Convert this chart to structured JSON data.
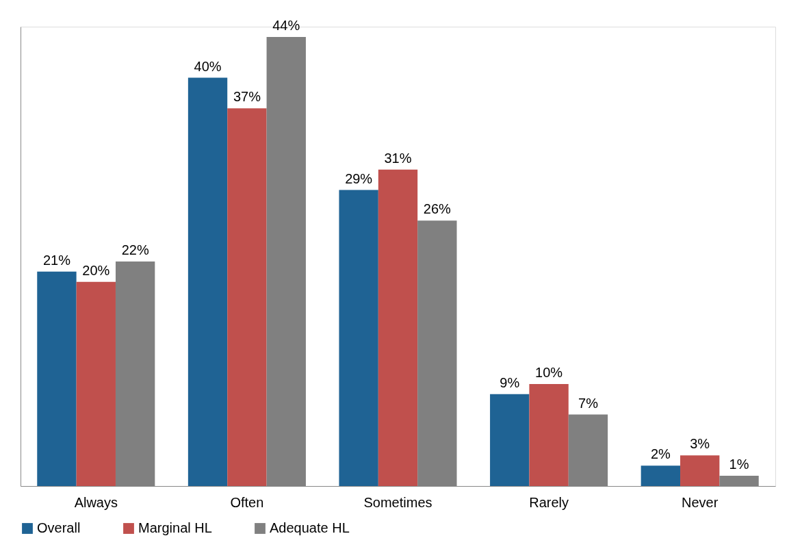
{
  "chart_data": {
    "type": "bar",
    "categories": [
      "Always",
      "Often",
      "Sometimes",
      "Rarely",
      "Never"
    ],
    "series": [
      {
        "name": "Overall",
        "color": "#1f6394",
        "values": [
          21,
          40,
          29,
          9,
          2
        ],
        "value_labels": [
          "21%",
          "40%",
          "29%",
          "9%",
          "2%"
        ]
      },
      {
        "name": "Marginal HL",
        "color": "#c0504d",
        "values": [
          20,
          37,
          31,
          10,
          3
        ],
        "value_labels": [
          "20%",
          "37%",
          "31%",
          "10%",
          "3%"
        ]
      },
      {
        "name": "Adequate HL",
        "color": "#808080",
        "values": [
          22,
          44,
          26,
          7,
          1
        ],
        "value_labels": [
          "22%",
          "44%",
          "26%",
          "7%",
          "1%"
        ]
      }
    ],
    "legend": "bottom",
    "grid": false
  }
}
